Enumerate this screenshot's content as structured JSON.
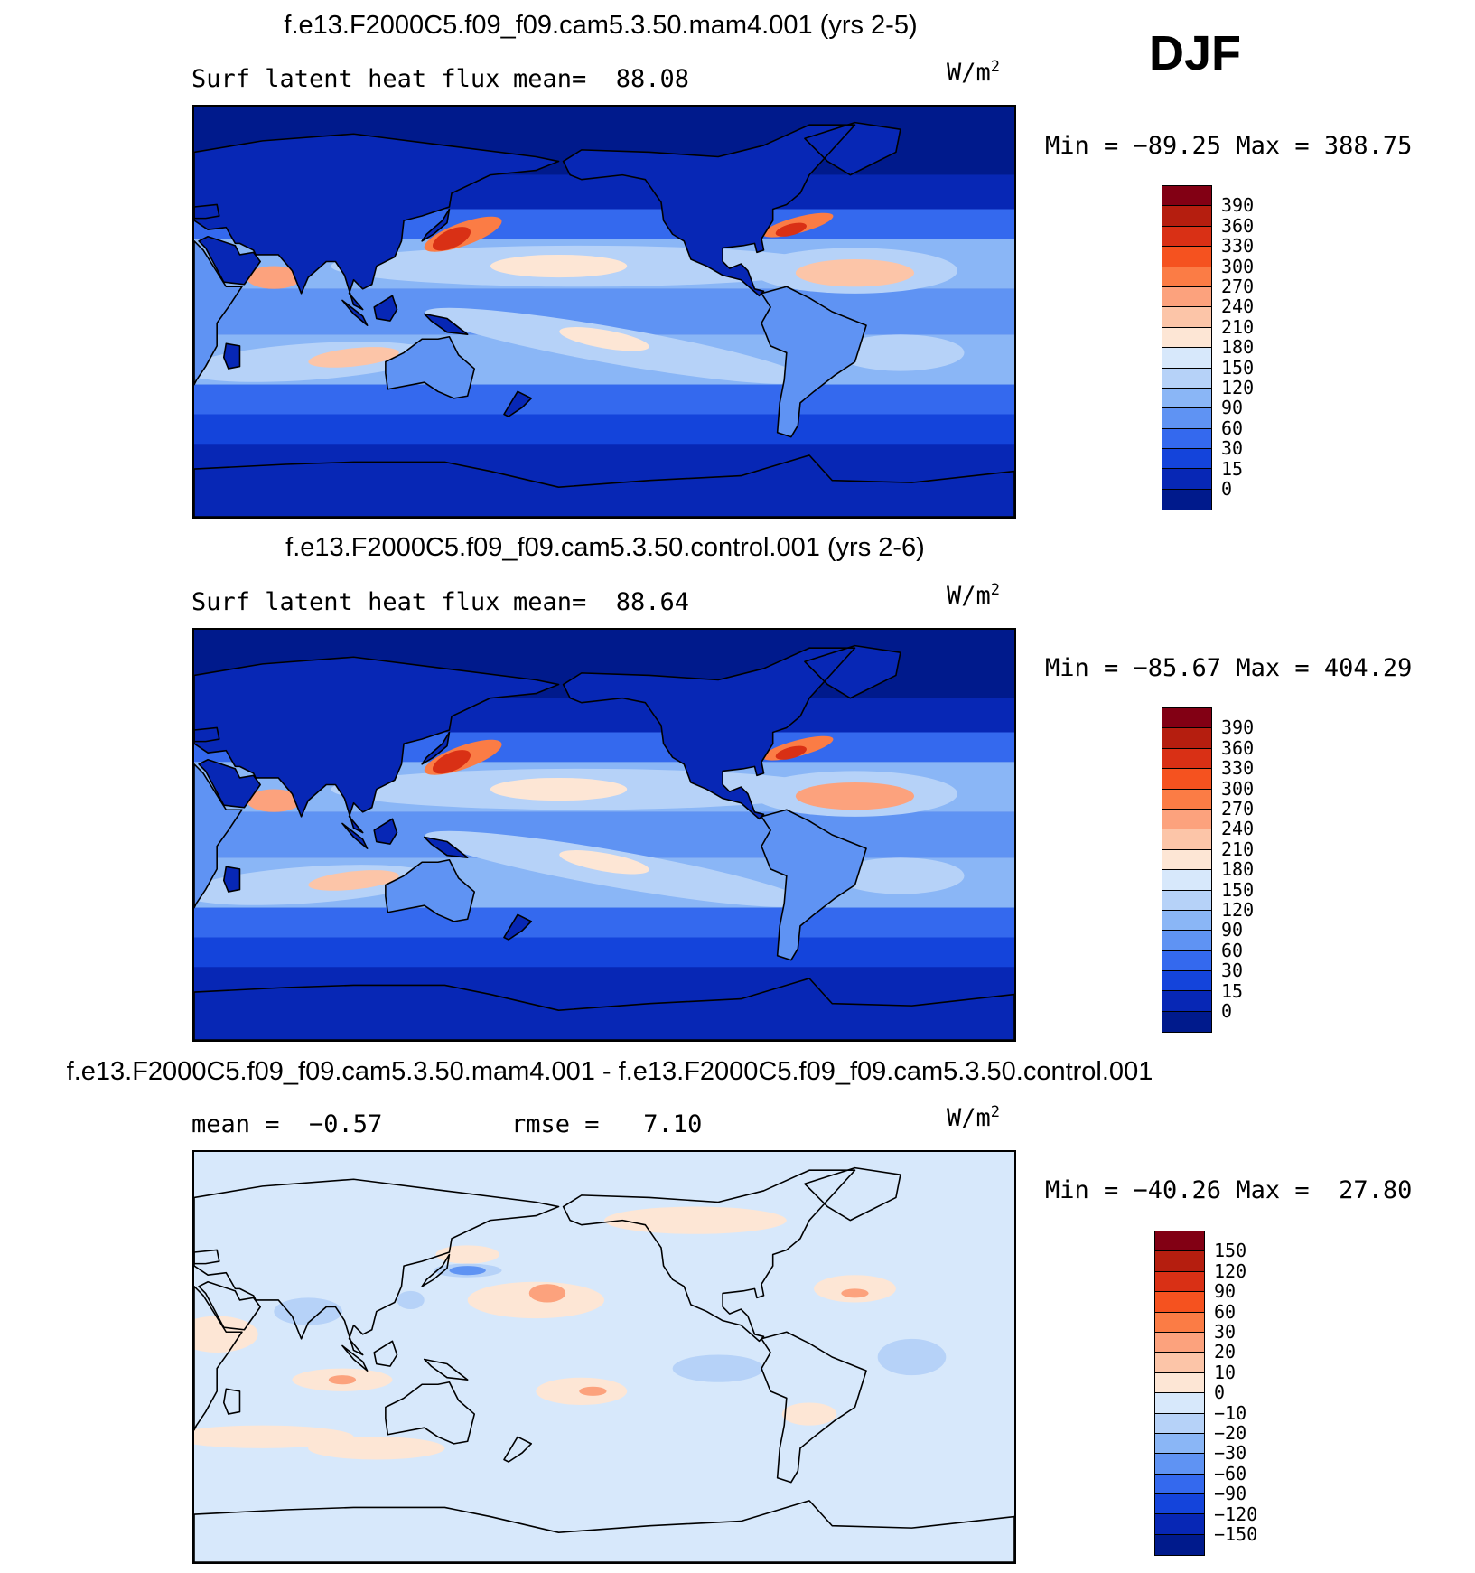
{
  "season": "DJF",
  "panels": [
    {
      "title": "f.e13.F2000C5.f09_f09.cam5.3.50.mam4.001 (yrs 2-5)",
      "left_text": "Surf latent heat flux",
      "stat_text": "mean=  88.08",
      "units": "W/m",
      "units_exp": "2",
      "minmax": "Min = −89.25 Max = 388.75",
      "colorbar": {
        "ticks": [
          "390",
          "360",
          "330",
          "300",
          "270",
          "240",
          "210",
          "180",
          "150",
          "120",
          "90",
          "60",
          "30",
          "15",
          "0"
        ],
        "colors": [
          "#820014",
          "#b51e0f",
          "#d93015",
          "#f5521f",
          "#fb7c45",
          "#fca27d",
          "#fcc5a8",
          "#fde6d5",
          "#d7e8fb",
          "#b6d2f8",
          "#8ab6f6",
          "#5f93f3",
          "#3469ee",
          "#1444db",
          "#0727b5",
          "#001a8c"
        ]
      },
      "palette": "abs"
    },
    {
      "title": "f.e13.F2000C5.f09_f09.cam5.3.50.control.001 (yrs 2-6)",
      "left_text": "Surf latent heat flux",
      "stat_text": "mean=  88.64",
      "units": "W/m",
      "units_exp": "2",
      "minmax": "Min = −85.67 Max = 404.29",
      "colorbar": {
        "ticks": [
          "390",
          "360",
          "330",
          "300",
          "270",
          "240",
          "210",
          "180",
          "150",
          "120",
          "90",
          "60",
          "30",
          "15",
          "0"
        ],
        "colors": [
          "#820014",
          "#b51e0f",
          "#d93015",
          "#f5521f",
          "#fb7c45",
          "#fca27d",
          "#fcc5a8",
          "#fde6d5",
          "#d7e8fb",
          "#b6d2f8",
          "#8ab6f6",
          "#5f93f3",
          "#3469ee",
          "#1444db",
          "#0727b5",
          "#001a8c"
        ]
      },
      "palette": "abs"
    },
    {
      "title": "f.e13.F2000C5.f09_f09.cam5.3.50.mam4.001 - f.e13.F2000C5.f09_f09.cam5.3.50.control.001",
      "left_text": "mean =  −0.57",
      "stat_text": "rmse =   7.10",
      "units": "W/m",
      "units_exp": "2",
      "minmax": "Min = −40.26 Max =  27.80",
      "colorbar": {
        "ticks": [
          "150",
          "120",
          "90",
          "60",
          "30",
          "20",
          "10",
          "0",
          "−10",
          "−20",
          "−30",
          "−60",
          "−90",
          "−120",
          "−150"
        ],
        "colors": [
          "#820014",
          "#b51e0f",
          "#d93015",
          "#f5521f",
          "#fb7c45",
          "#fca27d",
          "#fcc5a8",
          "#fde6d5",
          "#d7e8fb",
          "#b6d2f8",
          "#8ab6f6",
          "#5f93f3",
          "#3469ee",
          "#1444db",
          "#0727b5",
          "#001a8c"
        ]
      },
      "palette": "diff"
    }
  ]
}
